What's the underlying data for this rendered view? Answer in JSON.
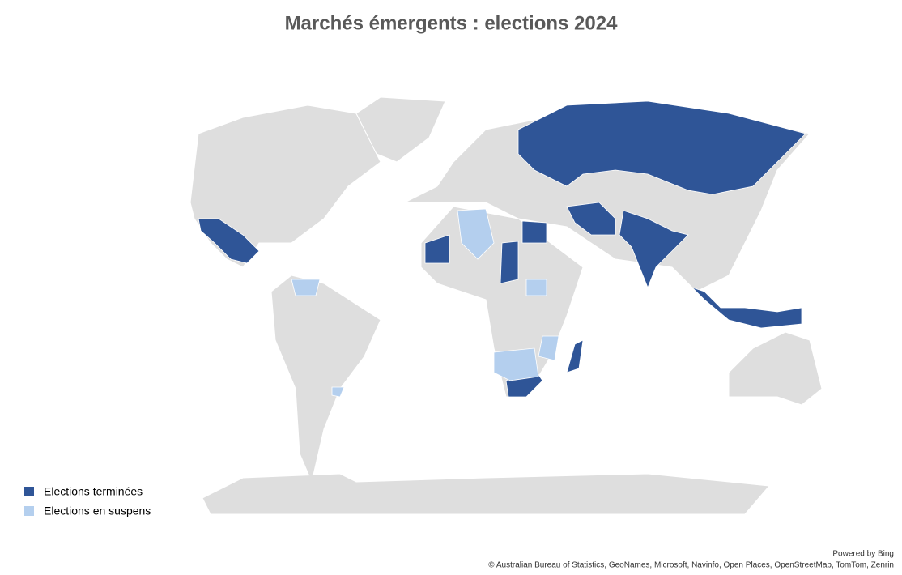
{
  "title": "Marchés émergents : elections 2024",
  "legend": [
    {
      "label": "Elections terminées",
      "color": "#2f5597"
    },
    {
      "label": "Elections en suspens",
      "color": "#b4cfee"
    }
  ],
  "credits": {
    "powered": "Powered by Bing",
    "attribution": "© Australian Bureau of Statistics, GeoNames, Microsoft, Navinfo, Open Places, OpenStreetMap, TomTom, Zenrin"
  }
}
